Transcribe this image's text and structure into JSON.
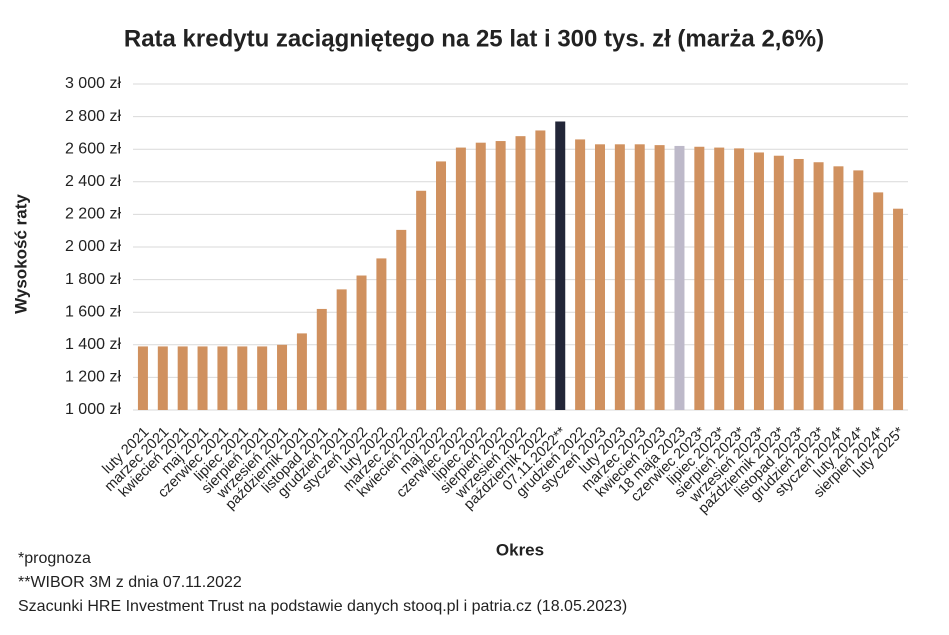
{
  "chart_data": {
    "type": "bar",
    "title": "Rata kredytu zaciągniętego na 25 lat i 300 tys. zł (marża 2,6%)",
    "x_label": "Okres",
    "y_label": "Wysokość raty",
    "categories": [
      "luty 2021",
      "marzec 2021",
      "kwiecień 2021",
      "maj 2021",
      "czerwiec 2021",
      "lipiec 2021",
      "sierpień 2021",
      "wrzesień 2021",
      "październik 2021",
      "listopad 2021",
      "grudzień 2021",
      "styczeń 2022",
      "luty 2022",
      "marzec 2022",
      "kwiecień 2022",
      "maj 2022",
      "czerwiec 2022",
      "lipiec 2022",
      "sierpień 2022",
      "wrzesień 2022",
      "październik 2022",
      "07.11.2022**",
      "grudzień 2022",
      "styczeń 2023",
      "luty 2023",
      "marzec 2023",
      "kwiecień 2023",
      "18 maja 2023",
      "czerwiec 2023*",
      "lipiec 2023*",
      "sierpień 2023*",
      "wrzesień 2023*",
      "październik 2023*",
      "listopad 2023*",
      "grudzień 2023*",
      "styczeń 2024*",
      "luty 2024*",
      "sierpień 2024*",
      "luty 2025*"
    ],
    "values": [
      1390,
      1390,
      1390,
      1390,
      1390,
      1390,
      1390,
      1400,
      1470,
      1620,
      1740,
      1825,
      1930,
      2105,
      2345,
      2525,
      2610,
      2640,
      2650,
      2680,
      2715,
      2770,
      2660,
      2630,
      2630,
      2630,
      2625,
      2620,
      2615,
      2610,
      2605,
      2580,
      2560,
      2540,
      2520,
      2495,
      2470,
      2335,
      2235
    ],
    "colors": [
      "#d0915f",
      "#d0915f",
      "#d0915f",
      "#d0915f",
      "#d0915f",
      "#d0915f",
      "#d0915f",
      "#d0915f",
      "#d0915f",
      "#d0915f",
      "#d0915f",
      "#d0915f",
      "#d0915f",
      "#d0915f",
      "#d0915f",
      "#d0915f",
      "#d0915f",
      "#d0915f",
      "#d0915f",
      "#d0915f",
      "#d0915f",
      "#222638",
      "#d0915f",
      "#d0915f",
      "#d0915f",
      "#d0915f",
      "#d0915f",
      "#bdb9c9",
      "#d0915f",
      "#d0915f",
      "#d0915f",
      "#d0915f",
      "#d0915f",
      "#d0915f",
      "#d0915f",
      "#d0915f",
      "#d0915f",
      "#d0915f",
      "#d0915f"
    ],
    "ylim": [
      1000,
      3000
    ],
    "yticks": [
      {
        "value": 1000,
        "label": "1 000 zł"
      },
      {
        "value": 1200,
        "label": "1 200 zł"
      },
      {
        "value": 1400,
        "label": "1 400 zł"
      },
      {
        "value": 1600,
        "label": "1 600 zł"
      },
      {
        "value": 1800,
        "label": "1 800 zł"
      },
      {
        "value": 2000,
        "label": "2 000 zł"
      },
      {
        "value": 2200,
        "label": "2 200 zł"
      },
      {
        "value": 2400,
        "label": "2 400 zł"
      },
      {
        "value": 2600,
        "label": "2 600 zł"
      },
      {
        "value": 2800,
        "label": "2 800 zł"
      },
      {
        "value": 3000,
        "label": "3 000 zł"
      }
    ],
    "grid": true,
    "notes": [
      "*prognoza",
      "**WIBOR 3M z dnia 07.11.2022",
      "Szacunki HRE Investment Trust na podstawie danych stooq.pl i patria.cz (18.05.2023)"
    ]
  }
}
